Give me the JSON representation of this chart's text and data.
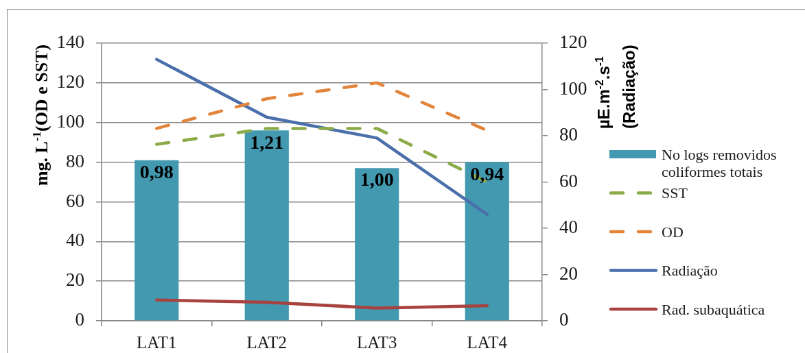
{
  "chart_data": {
    "type": "bar",
    "categories": [
      "LAT1",
      "LAT2",
      "LAT3",
      "LAT4"
    ],
    "series": [
      {
        "name": "No logs removidos coliformes totais",
        "color": "#4399b0",
        "values": [
          81,
          96,
          77,
          80
        ]
      },
      {
        "name": "SST",
        "type": "line",
        "color": "#8bab48",
        "values": [
          89,
          97,
          97,
          70
        ],
        "line_style": "dashed"
      },
      {
        "name": "OD",
        "type": "line",
        "color": "#e3843b",
        "values": [
          97,
          112,
          120,
          96
        ],
        "line_style": "dashed"
      },
      {
        "name": "Radiação",
        "type": "line",
        "color": "#4a6faa",
        "values": [
          113,
          88,
          79,
          46
        ],
        "axis": "y2",
        "line_style": "solid"
      },
      {
        "name": "Rad. subaquática",
        "type": "line",
        "color": "#a8423f",
        "values": [
          9,
          8,
          5.5,
          6.5
        ],
        "axis": "y2",
        "line_style": "solid"
      }
    ],
    "annotations": [
      {
        "text": "0,98",
        "x": "LAT1",
        "y": 81
      },
      {
        "text": "1,21",
        "x": "LAT2",
        "y": 96
      },
      {
        "text": "1,00",
        "x": "LAT3",
        "y": 77
      },
      {
        "text": "0,94",
        "x": "LAT4",
        "y": 80
      }
    ],
    "ylabel": "mg. L$^{-1}$(OD e SST)",
    "y2label": "µE.m$^{-2}$.s$^{-1}$ (Radiação)",
    "ylim": [
      0,
      140
    ],
    "yticks": [
      0,
      20,
      40,
      60,
      80,
      100,
      120,
      140
    ],
    "y2lim": [
      0,
      120
    ],
    "y2ticks": [
      0,
      20,
      40,
      60,
      80,
      100,
      120
    ],
    "grid": "y",
    "legend": "right",
    "marker": "none"
  }
}
